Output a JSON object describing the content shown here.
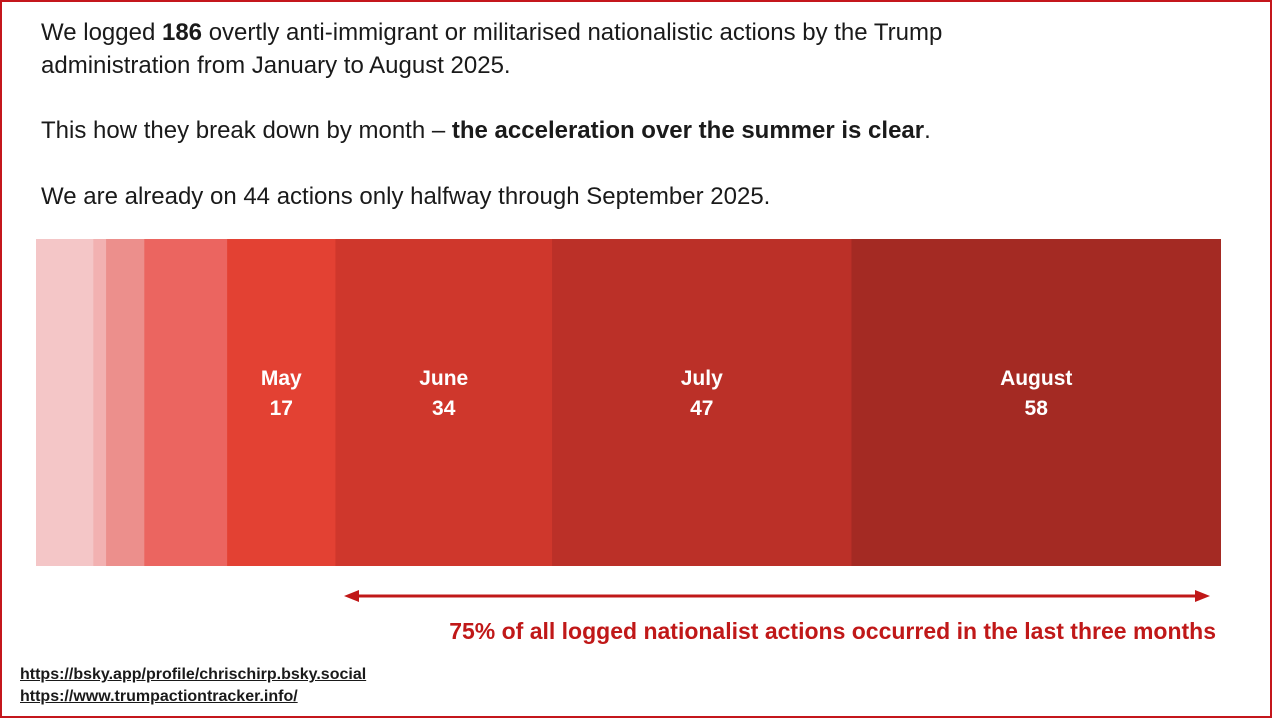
{
  "intro": {
    "p1_a": "We logged ",
    "p1_bold": "186",
    "p1_b": " overtly anti-immigrant or militarised nationalistic actions by the Trump administration from January to August 2025.",
    "p2_a": "This how they break down by month – ",
    "p2_bold": "the acceleration over the summer is clear",
    "p2_b": ".",
    "p3": "We are already on 44 actions only halfway through September 2025."
  },
  "chart_data": {
    "type": "bar",
    "orientation": "horizontal-stacked",
    "total": 186,
    "segments": [
      {
        "value": 9,
        "color": "#f4c6c7"
      },
      {
        "value": 2,
        "color": "#f2b1b1"
      },
      {
        "value": 6,
        "color": "#ec8f8c"
      },
      {
        "value": 13,
        "color": "#eb6560"
      },
      {
        "label": "May",
        "value": 17,
        "color": "#e34133"
      },
      {
        "label": "June",
        "value": 34,
        "color": "#cf372c"
      },
      {
        "label": "July",
        "value": 47,
        "color": "#bb3028"
      },
      {
        "label": "August",
        "value": 58,
        "color": "#a42a23"
      }
    ],
    "annotation": "75% of all logged nationalist actions occurred in the last three months"
  },
  "links": [
    "https://bsky.app/profile/chrischirp.bsky.social",
    "https://www.trumpactiontracker.info/"
  ],
  "colors": {
    "accent": "#c4161c",
    "callout": "#c01818"
  }
}
